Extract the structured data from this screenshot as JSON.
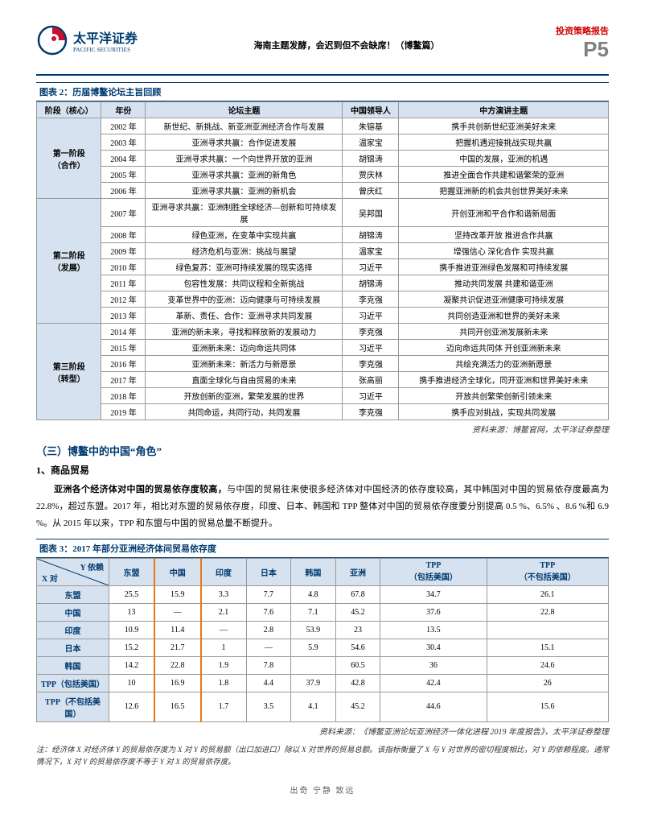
{
  "header": {
    "logo_cn": "太平洋证券",
    "logo_en": "PACIFIC SECURITIES",
    "center": "海南主题发酵，会迟到但不会缺席！（博鳌篇）",
    "report_type": "投资策略报告",
    "page_p": "P",
    "page_n": "5"
  },
  "table1": {
    "title": "图表 2：历届博鳌论坛主旨回顾",
    "headers": [
      "阶段（核心）",
      "年份",
      "论坛主题",
      "中国领导人",
      "中方演讲主题"
    ],
    "stages": [
      {
        "name": "第一阶段\n（合作）",
        "rows": [
          {
            "y": "2002 年",
            "t": "新世纪、新挑战、新亚洲亚洲经济合作与发展",
            "l": "朱镕基",
            "s": "携手共创新世纪亚洲美好未来"
          },
          {
            "y": "2003 年",
            "t": "亚洲寻求共赢：合作促进发展",
            "l": "温家宝",
            "s": "把握机遇迎接挑战实现共赢"
          },
          {
            "y": "2004 年",
            "t": "亚洲寻求共赢：一个向世界开放的亚洲",
            "l": "胡锦涛",
            "s": "中国的发展，亚洲的机遇"
          },
          {
            "y": "2005 年",
            "t": "亚洲寻求共赢：亚洲的新角色",
            "l": "贾庆林",
            "s": "推进全面合作共建和谐繁荣的亚洲"
          },
          {
            "y": "2006 年",
            "t": "亚洲寻求共赢：亚洲的新机会",
            "l": "曾庆红",
            "s": "把握亚洲新的机会共创世界美好未来"
          }
        ]
      },
      {
        "name": "第二阶段\n（发展）",
        "rows": [
          {
            "y": "2007 年",
            "t": "亚洲寻求共赢：亚洲制胜全球经济—创新和可持续发展",
            "l": "吴邦国",
            "s": "开创亚洲和平合作和谐新局面"
          },
          {
            "y": "2008 年",
            "t": "绿色亚洲，在变革中实现共赢",
            "l": "胡锦涛",
            "s": "坚持改革开放  推进合作共赢"
          },
          {
            "y": "2009 年",
            "t": "经济危机与亚洲：挑战与展望",
            "l": "温家宝",
            "s": "增强信心  深化合作  实现共赢"
          },
          {
            "y": "2010 年",
            "t": "绿色复苏：亚洲可持续发展的现实选择",
            "l": "习近平",
            "s": "携手推进亚洲绿色发展和可持续发展"
          },
          {
            "y": "2011 年",
            "t": "包容性发展：共同议程和全新挑战",
            "l": "胡锦涛",
            "s": "推动共同发展  共建和谐亚洲"
          },
          {
            "y": "2012 年",
            "t": "变革世界中的亚洲：迈向健康与可持续发展",
            "l": "李克强",
            "s": "凝聚共识促进亚洲健康可持续发展"
          },
          {
            "y": "2013 年",
            "t": "革新、责任、合作：亚洲寻求共同发展",
            "l": "习近平",
            "s": "共同创造亚洲和世界的美好未来"
          }
        ]
      },
      {
        "name": "第三阶段\n（转型）",
        "rows": [
          {
            "y": "2014 年",
            "t": "亚洲的新未来，寻找和释放新的发展动力",
            "l": "李克强",
            "s": "共同开创亚洲发展新未来"
          },
          {
            "y": "2015 年",
            "t": "亚洲新未来：迈向命运共同体",
            "l": "习近平",
            "s": "迈向命运共同体  开创亚洲新未来"
          },
          {
            "y": "2016 年",
            "t": "亚洲新未来：新活力与新愿景",
            "l": "李克强",
            "s": "共绘充满活力的亚洲新愿景"
          },
          {
            "y": "2017 年",
            "t": "直面全球化与自由贸易的未来",
            "l": "张高丽",
            "s": "携手推进经济全球化，同开亚洲和世界美好未来"
          },
          {
            "y": "2018 年",
            "t": "开放创新的亚洲，繁荣发展的世界",
            "l": "习近平",
            "s": "开放共创繁荣创新引领未来"
          },
          {
            "y": "2019 年",
            "t": "共同命运，共同行动，共同发展",
            "l": "李克强",
            "s": "携手应对挑战，实现共同发展"
          }
        ]
      }
    ],
    "source": "资料来源：博鳌官网，太平洋证券整理"
  },
  "section": {
    "h": "（三）博鳌中的中国“角色”",
    "sub": "1、商品贸易",
    "p1_bold": "亚洲各个经济体对中国的贸易依存度较高，",
    "p1_rest": "与中国的贸易往来使很多经济体对中国经济的依存度较高，其中韩国对中国的贸易依存度最高为 22.8%，超过东盟。2017 年，相比对东盟的贸易依存度，印度、日本、韩国和 TPP 整体对中国的贸易依存度要分别提高 0.5 %、6.5% 、8.6 %和 6.9 %。从 2015 年以来，TPP 和东盟与中国的贸易总量不断提升。"
  },
  "table2": {
    "title": "图表 3：2017 年部分亚洲经济体间贸易依存度",
    "diag_top": "Y 依赖",
    "diag_bottom": "X 对",
    "cols": [
      "东盟",
      "中国",
      "印度",
      "日本",
      "韩国",
      "亚洲",
      "TPP\n（包括美国）",
      "TPP\n（不包括美国）"
    ],
    "rows": [
      {
        "label": "东盟",
        "cells": [
          "25.5",
          "15.9",
          "3.3",
          "7.7",
          "4.8",
          "67.8",
          "34.7",
          "26.1"
        ]
      },
      {
        "label": "中国",
        "cells": [
          "13",
          "—",
          "2.1",
          "7.6",
          "7.1",
          "45.2",
          "37.6",
          "22.8"
        ]
      },
      {
        "label": "印度",
        "cells": [
          "10.9",
          "11.4",
          "—",
          "2.8",
          "53.9",
          "23",
          "13.5",
          ""
        ]
      },
      {
        "label": "日本",
        "cells": [
          "15.2",
          "21.7",
          "1",
          "—",
          "5.9",
          "54.6",
          "30.4",
          "15.1"
        ]
      },
      {
        "label": "韩国",
        "cells": [
          "14.2",
          "22.8",
          "1.9",
          "7.8",
          "",
          "60.5",
          "36",
          "24.6"
        ]
      },
      {
        "label": "TPP（包括美国）",
        "cells": [
          "10",
          "16.9",
          "1.8",
          "4.4",
          "37.9",
          "42.8",
          "42.4",
          "26"
        ]
      },
      {
        "label": "TPP（不包括美国）",
        "cells": [
          "12.6",
          "16.5",
          "1.7",
          "3.5",
          "4.1",
          "45.2",
          "44.6",
          "15.6"
        ]
      }
    ],
    "source": "资料来源：《博鳌亚洲论坛亚洲经济一体化进程 2019 年度报告》，太平洋证券整理",
    "note": "注：经济体 X 对经济体 Y 的贸易依存度为 X 对 Y 的贸易额（出口加进口）除以 X 对世界的贸易总额。该指标衡量了 X 与 Y 对世界的密切程度相比，对 Y 的依赖程度。通常情况下，X 对 Y 的贸易依存度不等于 Y 对 X 的贸易依存度。"
  },
  "footer": "出奇 宁静 致远"
}
